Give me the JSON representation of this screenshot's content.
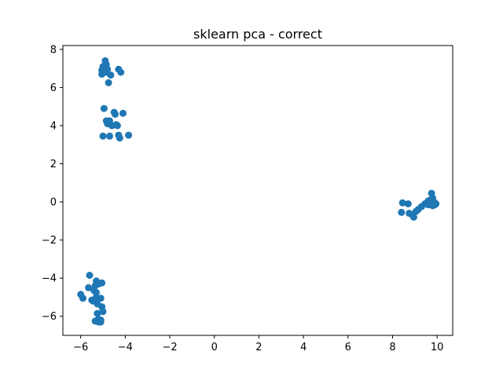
{
  "chart_data": {
    "type": "scatter",
    "title": "sklearn pca - correct",
    "xlabel": "",
    "ylabel": "",
    "xlim": [
      -6.8,
      10.7
    ],
    "ylim": [
      -7.0,
      8.2
    ],
    "xticks": [
      -6,
      -4,
      -2,
      0,
      2,
      4,
      6,
      8,
      10
    ],
    "xtick_labels": [
      "−6",
      "−4",
      "−2",
      "0",
      "2",
      "4",
      "6",
      "8",
      "10"
    ],
    "yticks": [
      -6,
      -4,
      -2,
      0,
      2,
      4,
      6,
      8
    ],
    "ytick_labels": [
      "−6",
      "−4",
      "−2",
      "0",
      "2",
      "4",
      "6",
      "8"
    ],
    "grid": false,
    "legend": false,
    "marker_color": "#1f77b4",
    "series": [
      {
        "points": [
          [
            -5.05,
            6.9
          ],
          [
            -4.9,
            7.4
          ],
          [
            -4.85,
            7.2
          ],
          [
            -5.0,
            7.0
          ],
          [
            -4.95,
            7.1
          ],
          [
            -4.8,
            6.95
          ],
          [
            -5.05,
            6.7
          ],
          [
            -4.85,
            6.8
          ],
          [
            -4.65,
            6.65
          ],
          [
            -4.75,
            6.25
          ],
          [
            -4.3,
            6.95
          ],
          [
            -4.2,
            6.8
          ],
          [
            -5.0,
            7.1
          ],
          [
            -4.9,
            6.85
          ],
          [
            -4.95,
            4.9
          ],
          [
            -4.5,
            4.7
          ],
          [
            -4.45,
            4.6
          ],
          [
            -4.1,
            4.65
          ],
          [
            -4.85,
            4.25
          ],
          [
            -4.7,
            4.25
          ],
          [
            -4.6,
            4.0
          ],
          [
            -4.75,
            4.1
          ],
          [
            -4.35,
            4.0
          ],
          [
            -4.3,
            3.5
          ],
          [
            -4.25,
            3.35
          ],
          [
            -3.85,
            3.5
          ],
          [
            -4.7,
            3.45
          ],
          [
            -5.0,
            3.45
          ],
          [
            -4.8,
            4.1
          ],
          [
            -4.4,
            4.05
          ],
          [
            -6.0,
            -4.85
          ],
          [
            -5.9,
            -5.05
          ],
          [
            -5.6,
            -3.85
          ],
          [
            -5.65,
            -4.5
          ],
          [
            -5.3,
            -4.15
          ],
          [
            -5.35,
            -4.4
          ],
          [
            -5.2,
            -4.3
          ],
          [
            -5.05,
            -4.25
          ],
          [
            -5.5,
            -5.15
          ],
          [
            -5.45,
            -5.2
          ],
          [
            -5.3,
            -5.0
          ],
          [
            -5.1,
            -5.05
          ],
          [
            -5.25,
            -5.35
          ],
          [
            -5.05,
            -5.5
          ],
          [
            -5.0,
            -5.75
          ],
          [
            -5.25,
            -5.85
          ],
          [
            -5.2,
            -6.15
          ],
          [
            -5.1,
            -6.2
          ],
          [
            -5.2,
            -6.3
          ],
          [
            -5.1,
            -6.3
          ],
          [
            -5.35,
            -6.25
          ],
          [
            -5.4,
            -4.65
          ],
          [
            -5.3,
            -4.75
          ],
          [
            8.45,
            -0.05
          ],
          [
            8.7,
            -0.1
          ],
          [
            8.4,
            -0.55
          ],
          [
            8.75,
            -0.6
          ],
          [
            8.9,
            -0.7
          ],
          [
            8.95,
            -0.8
          ],
          [
            9.05,
            -0.5
          ],
          [
            9.15,
            -0.4
          ],
          [
            9.3,
            -0.25
          ],
          [
            9.45,
            -0.1
          ],
          [
            9.6,
            0.05
          ],
          [
            9.7,
            0.1
          ],
          [
            9.75,
            0.45
          ],
          [
            9.8,
            0.2
          ],
          [
            9.85,
            0.0
          ],
          [
            9.9,
            -0.15
          ],
          [
            9.95,
            -0.1
          ],
          [
            9.6,
            -0.15
          ],
          [
            9.8,
            -0.2
          ],
          [
            9.9,
            -0.05
          ]
        ]
      }
    ]
  }
}
